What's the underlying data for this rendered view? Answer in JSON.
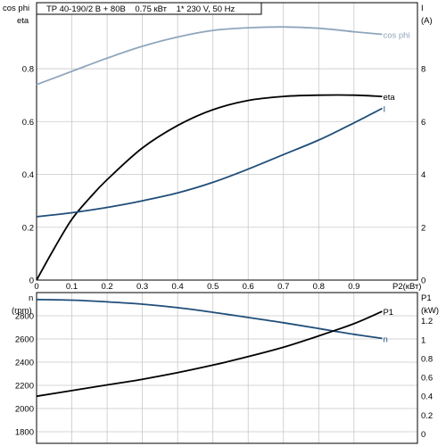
{
  "chart_data": [
    {
      "type": "line",
      "title": "TP 40-190/2 B + 80B    0.75 кВт    1* 230 V, 50 Hz",
      "xlabel": "P2(кВт)",
      "xlim": [
        0,
        1.08
      ],
      "xticks": [
        "0",
        "0.1",
        "0.2",
        "0.3",
        "0.4",
        "0.5",
        "0.6",
        "0.7",
        "0.8",
        "0.9"
      ],
      "left_axis": {
        "label_lines": [
          "cos phi",
          "eta"
        ],
        "ylim": [
          0,
          1.05
        ],
        "ticks": [
          "0",
          "0.2",
          "0.4",
          "0.6",
          "0.8"
        ]
      },
      "right_axis": {
        "label_lines": [
          "I",
          "(A)"
        ],
        "ylim": [
          0,
          10.5
        ],
        "ticks": [
          "0",
          "2",
          "4",
          "6",
          "8"
        ]
      },
      "grid": true,
      "series": [
        {
          "name": "cos phi",
          "axis": "left",
          "color": "#8fa6bd",
          "x": [
            0,
            0.1,
            0.2,
            0.3,
            0.4,
            0.5,
            0.6,
            0.7,
            0.8,
            0.9,
            0.98
          ],
          "y": [
            0.74,
            0.79,
            0.84,
            0.885,
            0.92,
            0.945,
            0.955,
            0.958,
            0.953,
            0.94,
            0.93
          ]
        },
        {
          "name": "eta",
          "axis": "left",
          "color": "#000000",
          "x": [
            0,
            0.05,
            0.1,
            0.15,
            0.2,
            0.3,
            0.4,
            0.5,
            0.6,
            0.7,
            0.8,
            0.9,
            0.98
          ],
          "y": [
            0,
            0.12,
            0.23,
            0.31,
            0.38,
            0.5,
            0.585,
            0.645,
            0.68,
            0.695,
            0.7,
            0.7,
            0.695
          ]
        },
        {
          "name": "I",
          "axis": "right",
          "color": "#1f4e79",
          "x": [
            0,
            0.1,
            0.2,
            0.3,
            0.4,
            0.5,
            0.6,
            0.7,
            0.8,
            0.9,
            0.98
          ],
          "y": [
            2.4,
            2.55,
            2.75,
            3.0,
            3.3,
            3.7,
            4.2,
            4.75,
            5.3,
            5.95,
            6.5
          ]
        }
      ]
    },
    {
      "type": "line",
      "xlim": [
        0,
        1.08
      ],
      "left_axis": {
        "label_lines": [
          "n",
          "(rpm)"
        ],
        "ylim": [
          1700,
          3000
        ],
        "ticks": [
          "1800",
          "2000",
          "2200",
          "2400",
          "2600",
          "2800"
        ]
      },
      "right_axis": {
        "label_lines": [
          "P1",
          "(kW)"
        ],
        "ylim": [
          -0.1,
          1.5
        ],
        "ticks": [
          "0",
          "0.2",
          "0.4",
          "0.6",
          "0.8",
          "1",
          "1.2"
        ]
      },
      "grid": true,
      "series": [
        {
          "name": "n",
          "axis": "left",
          "color": "#1f4e79",
          "x": [
            0,
            0.1,
            0.2,
            0.3,
            0.4,
            0.5,
            0.6,
            0.7,
            0.8,
            0.9,
            0.98
          ],
          "y": [
            2940,
            2935,
            2920,
            2900,
            2870,
            2830,
            2785,
            2740,
            2690,
            2640,
            2605
          ]
        },
        {
          "name": "P1",
          "axis": "right",
          "color": "#000000",
          "x": [
            0,
            0.1,
            0.2,
            0.3,
            0.4,
            0.5,
            0.6,
            0.7,
            0.8,
            0.9,
            0.98
          ],
          "y": [
            0.4,
            0.46,
            0.52,
            0.58,
            0.65,
            0.73,
            0.82,
            0.92,
            1.04,
            1.17,
            1.3
          ]
        }
      ]
    }
  ]
}
